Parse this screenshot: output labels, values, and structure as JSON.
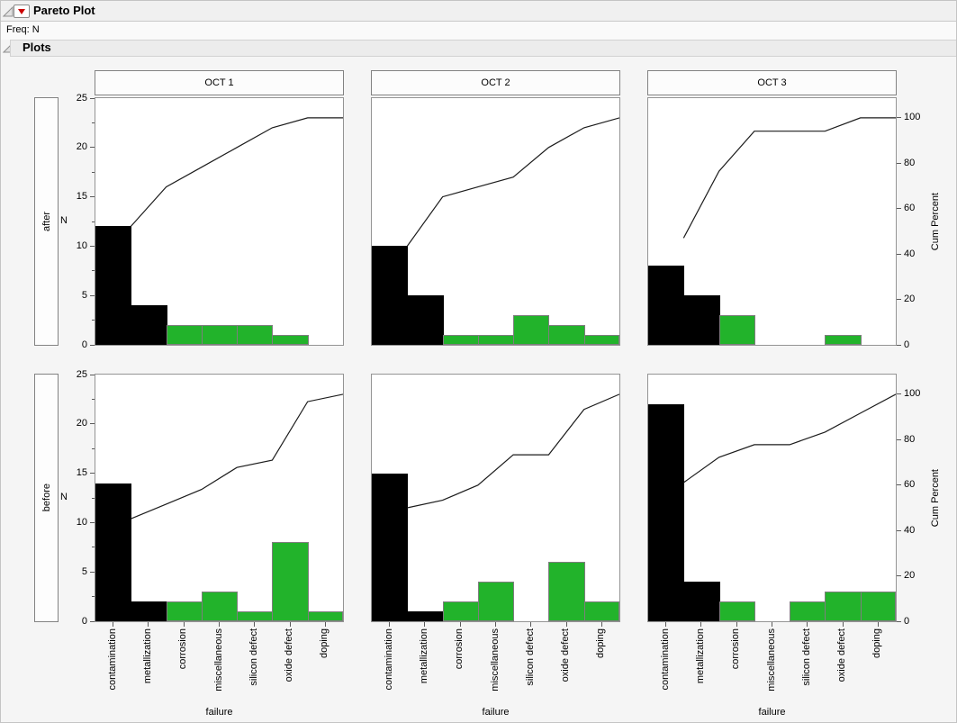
{
  "window": {
    "title": "Pareto Plot",
    "freq": "Freq: N",
    "section": "Plots"
  },
  "icons": {
    "outline_disclosure": "open-disclosure-triangle",
    "section_disclosure": "open-disclosure-triangle",
    "menu": "red-triangle-menu"
  },
  "colors": {
    "bar_primary": "#000000",
    "bar_secondary": "#22b32b",
    "cum_line": "#1c1c1c",
    "accent_red": "#cc0000",
    "plot_border": "#949494",
    "page_bg": "#f5f5f5"
  },
  "chart_data": {
    "type": "bar",
    "subtype": "pareto-grid",
    "title": "Pareto Plot",
    "categories": [
      "contamination",
      "metallization",
      "corrosion",
      "miscellaneous",
      "silicon defect",
      "oxide defect",
      "doping"
    ],
    "xlabel": "failure",
    "columns": [
      "OCT 1",
      "OCT 2",
      "OCT 3"
    ],
    "rows": [
      "after",
      "before"
    ],
    "left_axis": {
      "label": "N",
      "ticks": [
        0,
        5,
        10,
        15,
        20,
        25
      ],
      "minor_ticks": [
        2.5,
        7.5,
        12.5,
        17.5,
        22.5
      ],
      "range": [
        0,
        25
      ]
    },
    "right_axis": {
      "label": "Cum Percent",
      "ticks": [
        0,
        20,
        40,
        60,
        80,
        100
      ],
      "full_scale_at_n": 23
    },
    "num_primary_bars": 2,
    "panels": [
      {
        "row": "after",
        "column": "OCT 1",
        "values": [
          12,
          4,
          2,
          2,
          2,
          1,
          0
        ],
        "total": 23,
        "cum_percent": [
          52.2,
          69.6,
          78.3,
          87.0,
          95.7,
          100,
          100
        ]
      },
      {
        "row": "after",
        "column": "OCT 2",
        "values": [
          10,
          5,
          1,
          1,
          3,
          2,
          1
        ],
        "total": 23,
        "cum_percent": [
          43.5,
          65.2,
          69.6,
          73.9,
          87.0,
          95.7,
          100
        ]
      },
      {
        "row": "after",
        "column": "OCT 3",
        "values": [
          8,
          5,
          3,
          0,
          0,
          1,
          0
        ],
        "total": 17,
        "cum_percent": [
          47.1,
          76.5,
          94.1,
          94.1,
          94.1,
          100,
          100
        ]
      },
      {
        "row": "before",
        "column": "OCT 1",
        "values": [
          14,
          2,
          2,
          3,
          1,
          8,
          1
        ],
        "total": 31,
        "cum_percent": [
          45.2,
          51.6,
          58.1,
          67.7,
          71.0,
          96.8,
          100
        ]
      },
      {
        "row": "before",
        "column": "OCT 2",
        "values": [
          15,
          1,
          2,
          4,
          0,
          6,
          2
        ],
        "total": 30,
        "cum_percent": [
          50.0,
          53.3,
          60.0,
          73.3,
          73.3,
          93.3,
          100
        ]
      },
      {
        "row": "before",
        "column": "OCT 3",
        "values": [
          22,
          4,
          2,
          0,
          2,
          3,
          3
        ],
        "total": 36,
        "cum_percent": [
          61.1,
          72.2,
          77.8,
          77.8,
          83.3,
          91.7,
          100
        ]
      }
    ]
  }
}
